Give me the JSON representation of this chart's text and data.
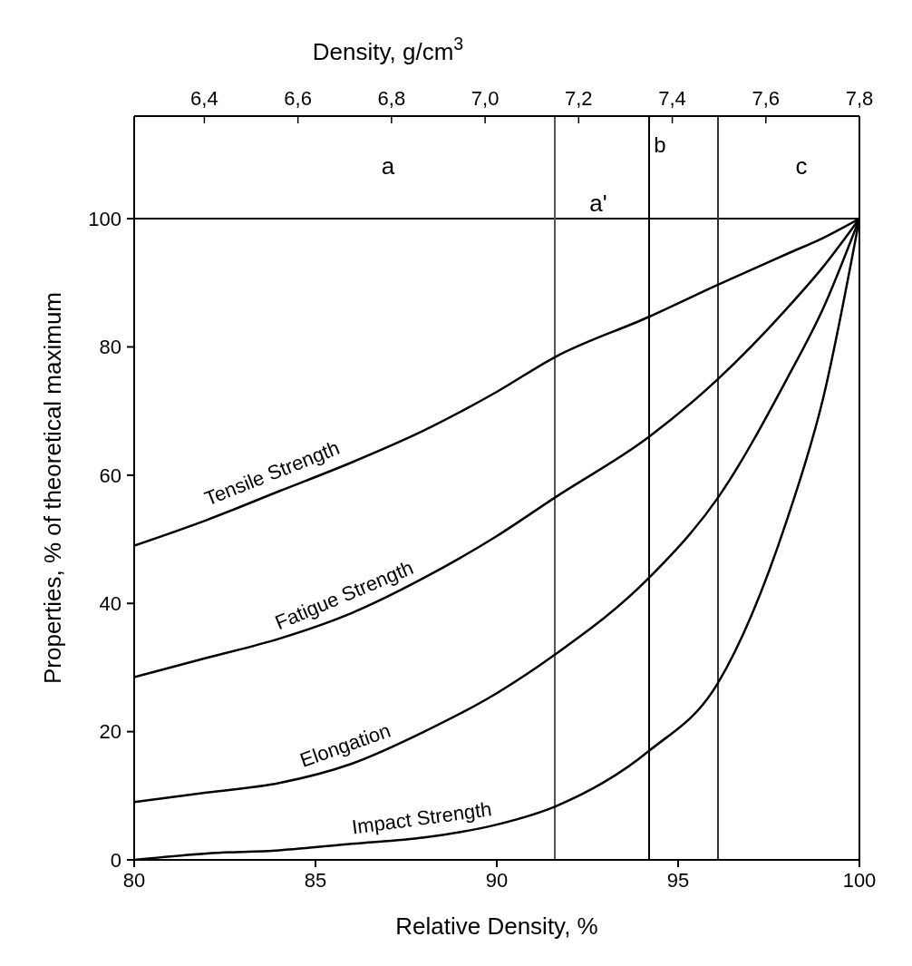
{
  "chart_data": {
    "type": "line",
    "xlabel": "Relative Density, %",
    "ylabel": "Properties, % of theoretical maximum",
    "x2label": "Density, g/cm$^{3}$",
    "x": [
      80,
      82,
      84,
      86,
      88,
      90,
      91.6,
      94.2,
      96.1,
      98,
      99,
      100
    ],
    "series": [
      {
        "name": "Tensile Strength",
        "color": "#000000",
        "values": [
          49,
          53,
          57.5,
          62,
          67,
          73,
          78.4,
          84.7,
          89.7,
          94.5,
          97,
          100
        ]
      },
      {
        "name": "Fatigue Strength",
        "color": "#000000",
        "values": [
          28.5,
          31.5,
          34.5,
          38.5,
          44,
          50.5,
          56.5,
          66,
          75,
          86,
          92.5,
          100
        ]
      },
      {
        "name": "Elongation",
        "color": "#000000",
        "values": [
          9,
          10.5,
          12,
          15,
          20,
          26,
          32,
          44,
          56.5,
          75,
          86,
          100
        ]
      },
      {
        "name": "Impact Strength",
        "color": "#000000",
        "values": [
          0,
          1,
          1.5,
          2.5,
          3.5,
          5.5,
          8.3,
          17,
          27.6,
          53,
          72,
          100
        ]
      }
    ],
    "xlim": [
      80,
      100
    ],
    "xticks": [
      80,
      85,
      90,
      95,
      100
    ],
    "x2lim": [
      6.25,
      7.8
    ],
    "x2ticks": [
      {
        "value": 6.4,
        "label": "6,4"
      },
      {
        "value": 6.6,
        "label": "6,6"
      },
      {
        "value": 6.8,
        "label": "6,8"
      },
      {
        "value": 7.0,
        "label": "7,0"
      },
      {
        "value": 7.2,
        "label": "7,2"
      },
      {
        "value": 7.4,
        "label": "7,4"
      },
      {
        "value": 7.6,
        "label": "7,6"
      },
      {
        "value": 7.8,
        "label": "7,8"
      }
    ],
    "ylim": [
      0,
      116
    ],
    "yticks": [
      0,
      20,
      40,
      60,
      80,
      100
    ],
    "ref_lines": [
      {
        "axis": "y",
        "value": 100,
        "label": null,
        "color": "#000000"
      },
      {
        "axis": "x",
        "value": 91.6,
        "label": null,
        "color": "#555555"
      },
      {
        "axis": "x",
        "value": 94.2,
        "label": "b",
        "color": "#000000"
      },
      {
        "axis": "x",
        "value": 96.1,
        "label": null,
        "color": "#333333"
      }
    ],
    "annotations": [
      "a",
      "a'",
      "c"
    ],
    "grid": false,
    "legend": false,
    "marker": "none",
    "line_style": "solid"
  }
}
